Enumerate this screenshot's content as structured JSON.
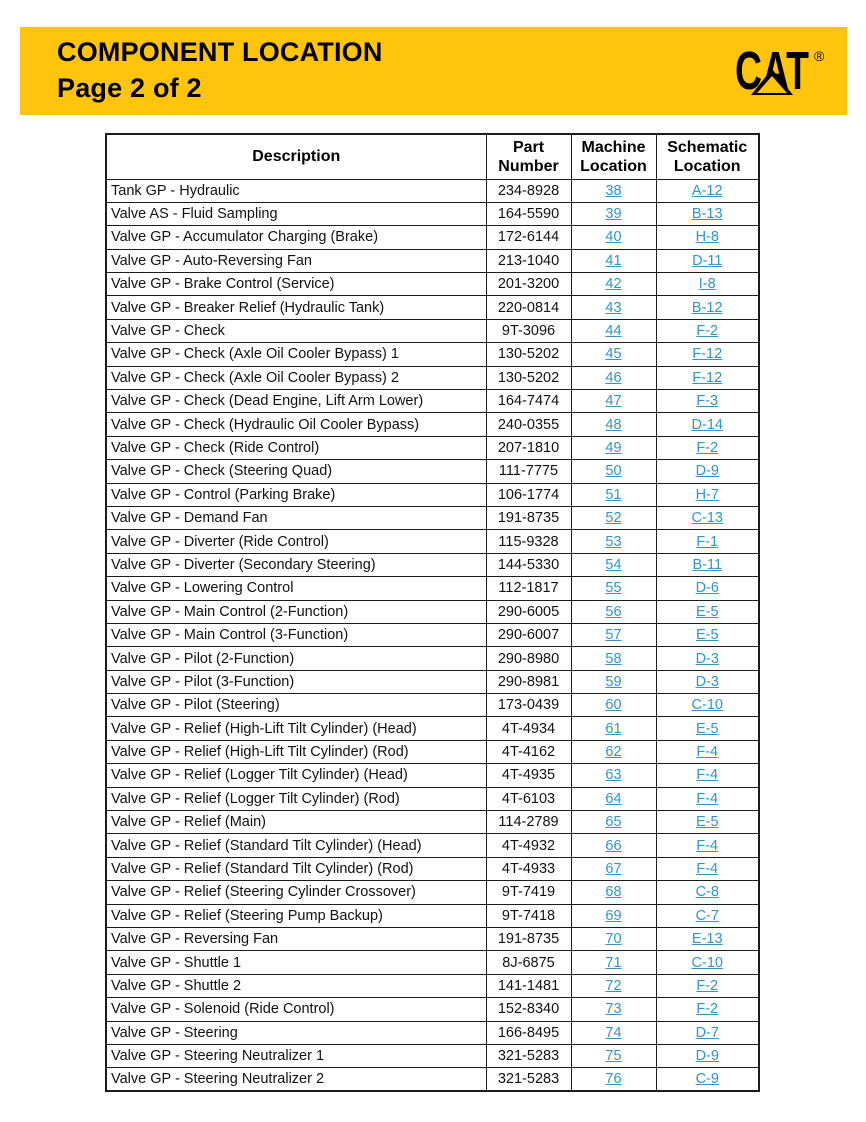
{
  "banner": {
    "title": "COMPONENT LOCATION",
    "subtitle": "Page 2 of 2",
    "bg_color": "#FFC50D",
    "logo_text": "CAT",
    "logo_registered": "®"
  },
  "table": {
    "columns": [
      "Description",
      "Part Number",
      "Machine Location",
      "Schematic Location"
    ],
    "link_color": "#3095C8",
    "rows": [
      [
        "Tank GP - Hydraulic",
        "234-8928",
        "38",
        "A-12"
      ],
      [
        "Valve AS - Fluid Sampling",
        "164-5590",
        "39",
        "B-13"
      ],
      [
        "Valve GP - Accumulator Charging (Brake)",
        "172-6144",
        "40",
        "H-8"
      ],
      [
        "Valve GP - Auto-Reversing Fan",
        "213-1040",
        "41",
        "D-11"
      ],
      [
        "Valve GP - Brake Control (Service)",
        "201-3200",
        "42",
        "I-8"
      ],
      [
        "Valve GP - Breaker Relief (Hydraulic Tank)",
        "220-0814",
        "43",
        "B-12"
      ],
      [
        "Valve GP - Check",
        "9T-3096",
        "44",
        "F-2"
      ],
      [
        "Valve GP - Check (Axle Oil Cooler Bypass) 1",
        "130-5202",
        "45",
        "F-12"
      ],
      [
        "Valve GP - Check (Axle Oil Cooler Bypass) 2",
        "130-5202",
        "46",
        "F-12"
      ],
      [
        "Valve GP - Check (Dead Engine, Lift Arm Lower)",
        "164-7474",
        "47",
        "F-3"
      ],
      [
        "Valve GP - Check (Hydraulic Oil Cooler Bypass)",
        "240-0355",
        "48",
        "D-14"
      ],
      [
        "Valve GP - Check (Ride Control)",
        "207-1810",
        "49",
        "F-2"
      ],
      [
        "Valve GP - Check (Steering Quad)",
        "111-7775",
        "50",
        "D-9"
      ],
      [
        "Valve GP - Control (Parking Brake)",
        "106-1774",
        "51",
        "H-7"
      ],
      [
        "Valve GP - Demand Fan",
        "191-8735",
        "52",
        "C-13"
      ],
      [
        "Valve GP - Diverter (Ride Control)",
        "115-9328",
        "53",
        "F-1"
      ],
      [
        "Valve GP - Diverter (Secondary Steering)",
        "144-5330",
        "54",
        "B-11"
      ],
      [
        "Valve GP - Lowering Control",
        "112-1817",
        "55",
        "D-6"
      ],
      [
        "Valve GP - Main Control (2-Function)",
        "290-6005",
        "56",
        "E-5"
      ],
      [
        "Valve GP - Main Control (3-Function)",
        "290-6007",
        "57",
        "E-5"
      ],
      [
        "Valve GP - Pilot (2-Function)",
        "290-8980",
        "58",
        "D-3"
      ],
      [
        "Valve GP - Pilot (3-Function)",
        "290-8981",
        "59",
        "D-3"
      ],
      [
        "Valve GP - Pilot (Steering)",
        "173-0439",
        "60",
        "C-10"
      ],
      [
        "Valve GP - Relief (High-Lift Tilt Cylinder) (Head)",
        "4T-4934",
        "61",
        "E-5"
      ],
      [
        "Valve GP - Relief (High-Lift Tilt Cylinder) (Rod)",
        "4T-4162",
        "62",
        "F-4"
      ],
      [
        "Valve GP - Relief (Logger Tilt Cylinder) (Head)",
        "4T-4935",
        "63",
        "F-4"
      ],
      [
        "Valve GP - Relief (Logger Tilt Cylinder) (Rod)",
        "4T-6103",
        "64",
        "F-4"
      ],
      [
        "Valve GP - Relief (Main)",
        "114-2789",
        "65",
        "E-5"
      ],
      [
        "Valve GP - Relief (Standard Tilt Cylinder) (Head)",
        "4T-4932",
        "66",
        "F-4"
      ],
      [
        "Valve GP - Relief (Standard Tilt Cylinder) (Rod)",
        "4T-4933",
        "67",
        "F-4"
      ],
      [
        "Valve GP - Relief (Steering Cylinder Crossover)",
        "9T-7419",
        "68",
        "C-8"
      ],
      [
        "Valve GP - Relief (Steering Pump Backup)",
        "9T-7418",
        "69",
        "C-7"
      ],
      [
        "Valve GP - Reversing Fan",
        "191-8735",
        "70",
        "E-13"
      ],
      [
        "Valve GP - Shuttle 1",
        "8J-6875",
        "71",
        "C-10"
      ],
      [
        "Valve GP - Shuttle 2",
        "141-1481",
        "72",
        "F-2"
      ],
      [
        "Valve GP - Solenoid (Ride Control)",
        "152-8340",
        "73",
        "F-2"
      ],
      [
        "Valve GP - Steering",
        "166-8495",
        "74",
        "D-7"
      ],
      [
        "Valve GP - Steering Neutralizer 1",
        "321-5283",
        "75",
        "D-9"
      ],
      [
        "Valve GP - Steering Neutralizer 2",
        "321-5283",
        "76",
        "C-9"
      ]
    ]
  }
}
